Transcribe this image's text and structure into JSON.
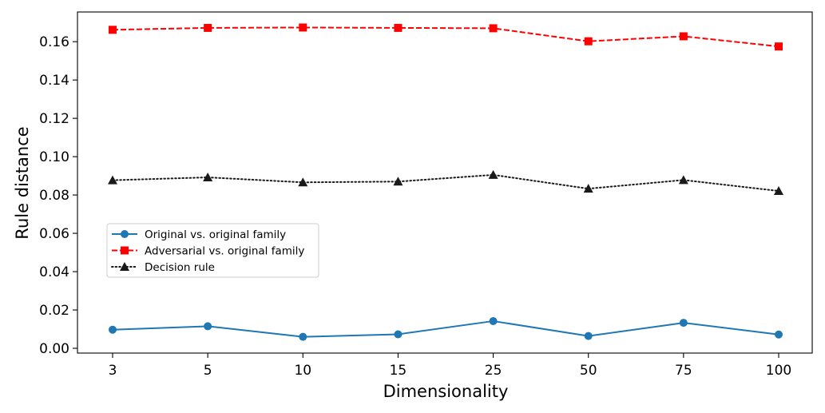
{
  "chart_data": {
    "type": "line",
    "title": "",
    "xlabel": "Dimensionality",
    "ylabel": "Rule distance",
    "categories": [
      "3",
      "5",
      "10",
      "15",
      "25",
      "50",
      "75",
      "100"
    ],
    "ylim": [
      -0.0025,
      0.1755
    ],
    "yticks": [
      0.0,
      0.02,
      0.04,
      0.06,
      0.08,
      0.1,
      0.12,
      0.14,
      0.16
    ],
    "ytick_labels": [
      "0.00",
      "0.02",
      "0.04",
      "0.06",
      "0.08",
      "0.10",
      "0.12",
      "0.14",
      "0.16"
    ],
    "grid": false,
    "legend_position": "center-left",
    "series": [
      {
        "name": "Original vs. original family",
        "color": "#1f77b4",
        "linestyle": "solid",
        "marker": "circle",
        "values": [
          0.0097,
          0.0115,
          0.006,
          0.0073,
          0.0142,
          0.0064,
          0.0133,
          0.0072
        ]
      },
      {
        "name": "Adversarial vs. original family",
        "color": "#ff0000",
        "linestyle": "dashed",
        "marker": "square",
        "values": [
          0.1662,
          0.1672,
          0.1674,
          0.1672,
          0.167,
          0.1602,
          0.1628,
          0.1575
        ]
      },
      {
        "name": "Decision rule",
        "color": "#1a1a1a",
        "linestyle": "dotted",
        "marker": "triangle",
        "values": [
          0.0877,
          0.0892,
          0.0866,
          0.087,
          0.0905,
          0.0833,
          0.0878,
          0.0821
        ]
      }
    ]
  }
}
